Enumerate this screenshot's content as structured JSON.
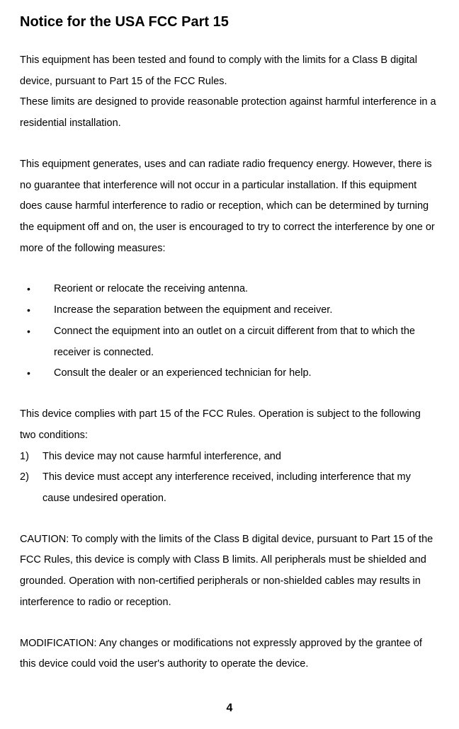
{
  "title": "Notice for the USA FCC Part 15",
  "para1a": "This equipment has been tested and found to comply with the limits for a Class B digital device, pursuant to Part 15 of the FCC Rules.",
  "para1b": "These limits are designed to provide reasonable protection against harmful interference in a residential installation.",
  "para2": "This equipment generates, uses and can radiate radio frequency energy. However, there is no guarantee that interference will not occur in a particular installation. If this equipment does cause harmful interference to radio or reception, which can be determined by turning the equipment off and on, the user is encouraged to try to correct the interference by one or more of the following measures:",
  "bullets": [
    "Reorient or relocate the receiving antenna.",
    "Increase the separation between the equipment and receiver.",
    "Connect the equipment into an outlet on a circuit different from that to which the receiver is connected.",
    "Consult the dealer or an experienced technician for help."
  ],
  "conditions_intro": "This device complies with part 15 of the FCC Rules. Operation is subject to the following two conditions:",
  "ordered": [
    {
      "num": "1)",
      "text": "This device may not cause harmful interference, and"
    },
    {
      "num": "2)",
      "text": "This device must accept any interference received, including interference that my cause undesired operation."
    }
  ],
  "caution": "CAUTION: To comply with the limits of the Class B digital device, pursuant to Part 15 of the FCC Rules, this device is comply with Class B limits. All peripherals must be shielded and grounded. Operation with non-certified peripherals or non-shielded cables may results in interference to radio or reception.",
  "modification": "MODIFICATION: Any changes or modifications not expressly approved by the grantee of this device could void the user's authority to operate the device.",
  "page_number": "4",
  "colors": {
    "text": "#000000",
    "background": "#ffffff"
  },
  "typography": {
    "body_fontsize": 14.5,
    "title_fontsize": 20,
    "line_height": 2.05,
    "font_family": "Arial"
  }
}
